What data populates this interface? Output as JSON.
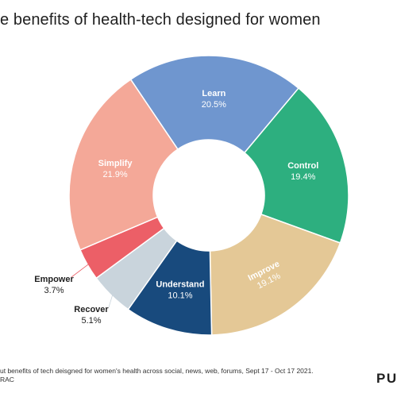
{
  "title": "e benefits of health-tech designed for women",
  "source_line1": "ut benefits of tech deisgned for women's health across social, news, web, forums, Sept 17 - Oct 17 2021.",
  "source_line2": "RAC",
  "logo_text": "PUL",
  "chart_data": {
    "type": "pie",
    "donut": true,
    "categories": [
      "Learn",
      "Control",
      "Improve",
      "Understand",
      "Recover",
      "Empower",
      "Simplify"
    ],
    "values": [
      20.5,
      19.4,
      19.1,
      10.1,
      5.1,
      3.7,
      21.9
    ],
    "value_labels": [
      "20.5%",
      "19.4%",
      "19.1%",
      "10.1%",
      "5.1%",
      "3.7%",
      "21.9%"
    ],
    "colors": [
      "#6f96cf",
      "#2daf7f",
      "#e4c896",
      "#184a7d",
      "#c9d4dc",
      "#ec5f67",
      "#f4a898"
    ],
    "label_placement": [
      "inside",
      "inside",
      "inside",
      "inside",
      "outside",
      "outside",
      "inside"
    ],
    "legend": "none"
  }
}
